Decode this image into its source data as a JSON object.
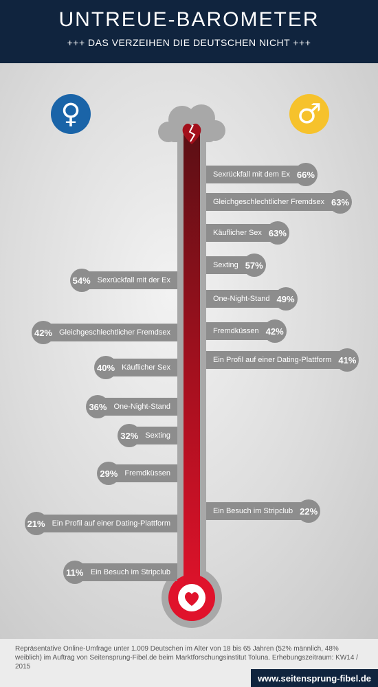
{
  "header": {
    "title": "UNTREUE-BAROMETER",
    "subtitle": "+++ DAS VERZEIHEN DIE DEUTSCHEN NICHT +++"
  },
  "symbols": {
    "female": "♀",
    "male": "♂"
  },
  "colors": {
    "navy": "#10243e",
    "female": "#1a64a8",
    "male": "#f6c22c",
    "mercury_light": "#e0122b",
    "mercury_dark": "#5a0f14",
    "label_gray": "#8d8d8d"
  },
  "chart_data": {
    "type": "bar",
    "series": [
      {
        "name": "male",
        "items": [
          {
            "label": "Sexrückfall mit dem Ex",
            "value": 66,
            "value_text": "66%"
          },
          {
            "label": "Gleichgeschlechtlicher Fremdsex",
            "value": 63,
            "value_text": "63%"
          },
          {
            "label": "Käuflicher Sex",
            "value": 63,
            "value_text": "63%"
          },
          {
            "label": "Sexting",
            "value": 57,
            "value_text": "57%"
          },
          {
            "label": "One-Night-Stand",
            "value": 49,
            "value_text": "49%"
          },
          {
            "label": "Fremdküssen",
            "value": 42,
            "value_text": "42%"
          },
          {
            "label": "Ein Profil auf einer Dating-Plattform",
            "value": 41,
            "value_text": "41%"
          },
          {
            "label": "Ein Besuch im Stripclub",
            "value": 22,
            "value_text": "22%"
          }
        ]
      },
      {
        "name": "female",
        "items": [
          {
            "label": "Sexrückfall mit der Ex",
            "value": 54,
            "value_text": "54%"
          },
          {
            "label": "Gleichgeschlechtlicher Fremdsex",
            "value": 42,
            "value_text": "42%"
          },
          {
            "label": "Käuflicher Sex",
            "value": 40,
            "value_text": "40%"
          },
          {
            "label": "One-Night-Stand",
            "value": 36,
            "value_text": "36%"
          },
          {
            "label": "Sexting",
            "value": 32,
            "value_text": "32%"
          },
          {
            "label": "Fremdküssen",
            "value": 29,
            "value_text": "29%"
          },
          {
            "label": "Ein Profil auf einer Dating-Plattform",
            "value": 21,
            "value_text": "21%"
          },
          {
            "label": "Ein Besuch im Stripclub",
            "value": 11,
            "value_text": "11%"
          }
        ]
      }
    ]
  },
  "footer": {
    "note": "Repräsentative Online-Umfrage unter 1.009 Deutschen im Alter von 18 bis 65 Jahren (52% männlich, 48% weiblich) im Auftrag von Seitensprung-Fibel.de beim Marktforschungsinstitut Toluna. Erhebungszeitraum: KW14 / 2015",
    "website": "www.seitensprung-fibel.de"
  }
}
